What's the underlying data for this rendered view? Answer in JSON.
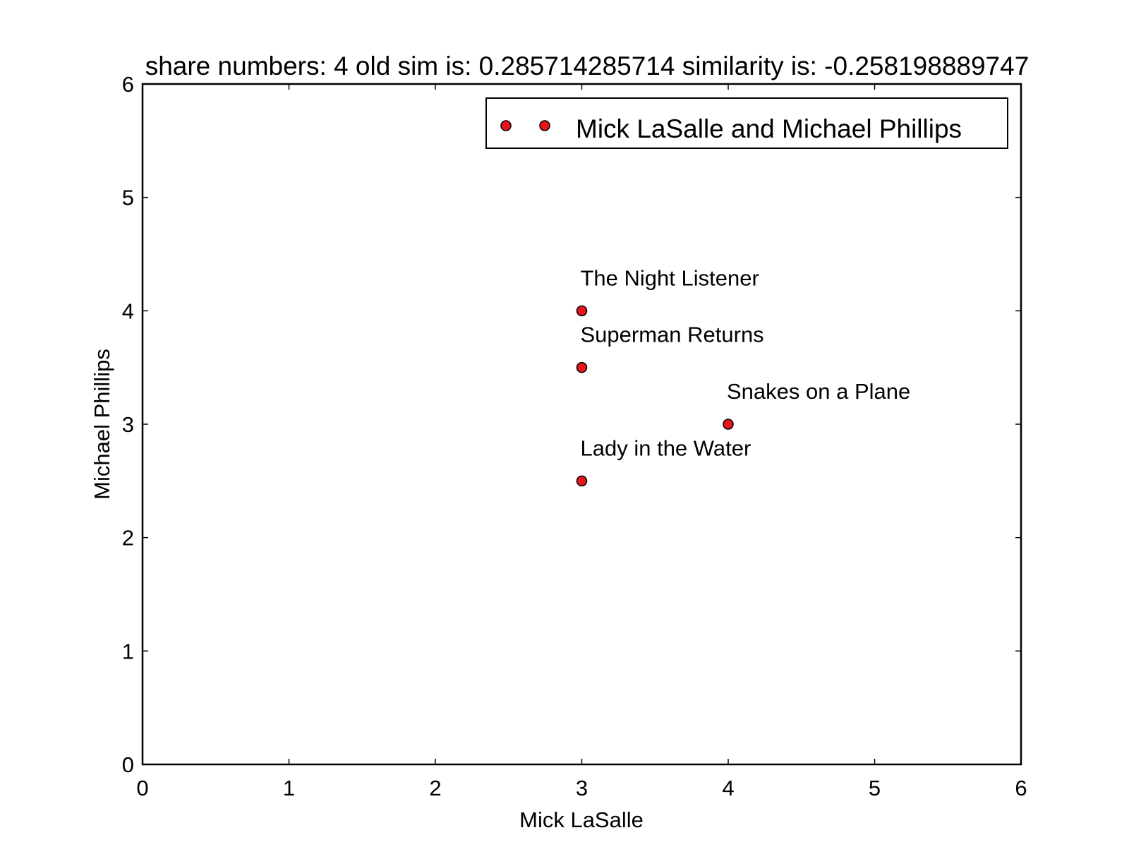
{
  "chart_data": {
    "type": "scatter",
    "title": "share numbers: 4 old sim is: 0.285714285714 similarity is: -0.258198889747",
    "xlabel": "Mick LaSalle",
    "ylabel": "Michael Phillips",
    "xlim": [
      0,
      6
    ],
    "ylim": [
      0,
      6
    ],
    "xticks": [
      "0",
      "1",
      "2",
      "3",
      "4",
      "5",
      "6"
    ],
    "yticks": [
      "0",
      "1",
      "2",
      "3",
      "4",
      "5",
      "6"
    ],
    "grid": false,
    "legend": {
      "placement": "top-right",
      "entries": [
        "Mick LaSalle and Michael Phillips"
      ]
    },
    "series": [
      {
        "name": "Mick LaSalle and Michael Phillips",
        "color": "#e8141c",
        "points": [
          {
            "x": 3,
            "y": 4,
            "label": "The Night Listener"
          },
          {
            "x": 3,
            "y": 3.5,
            "label": "Superman Returns"
          },
          {
            "x": 4,
            "y": 3,
            "label": "Snakes on a Plane"
          },
          {
            "x": 3,
            "y": 2.5,
            "label": "Lady in the Water"
          }
        ]
      }
    ]
  }
}
